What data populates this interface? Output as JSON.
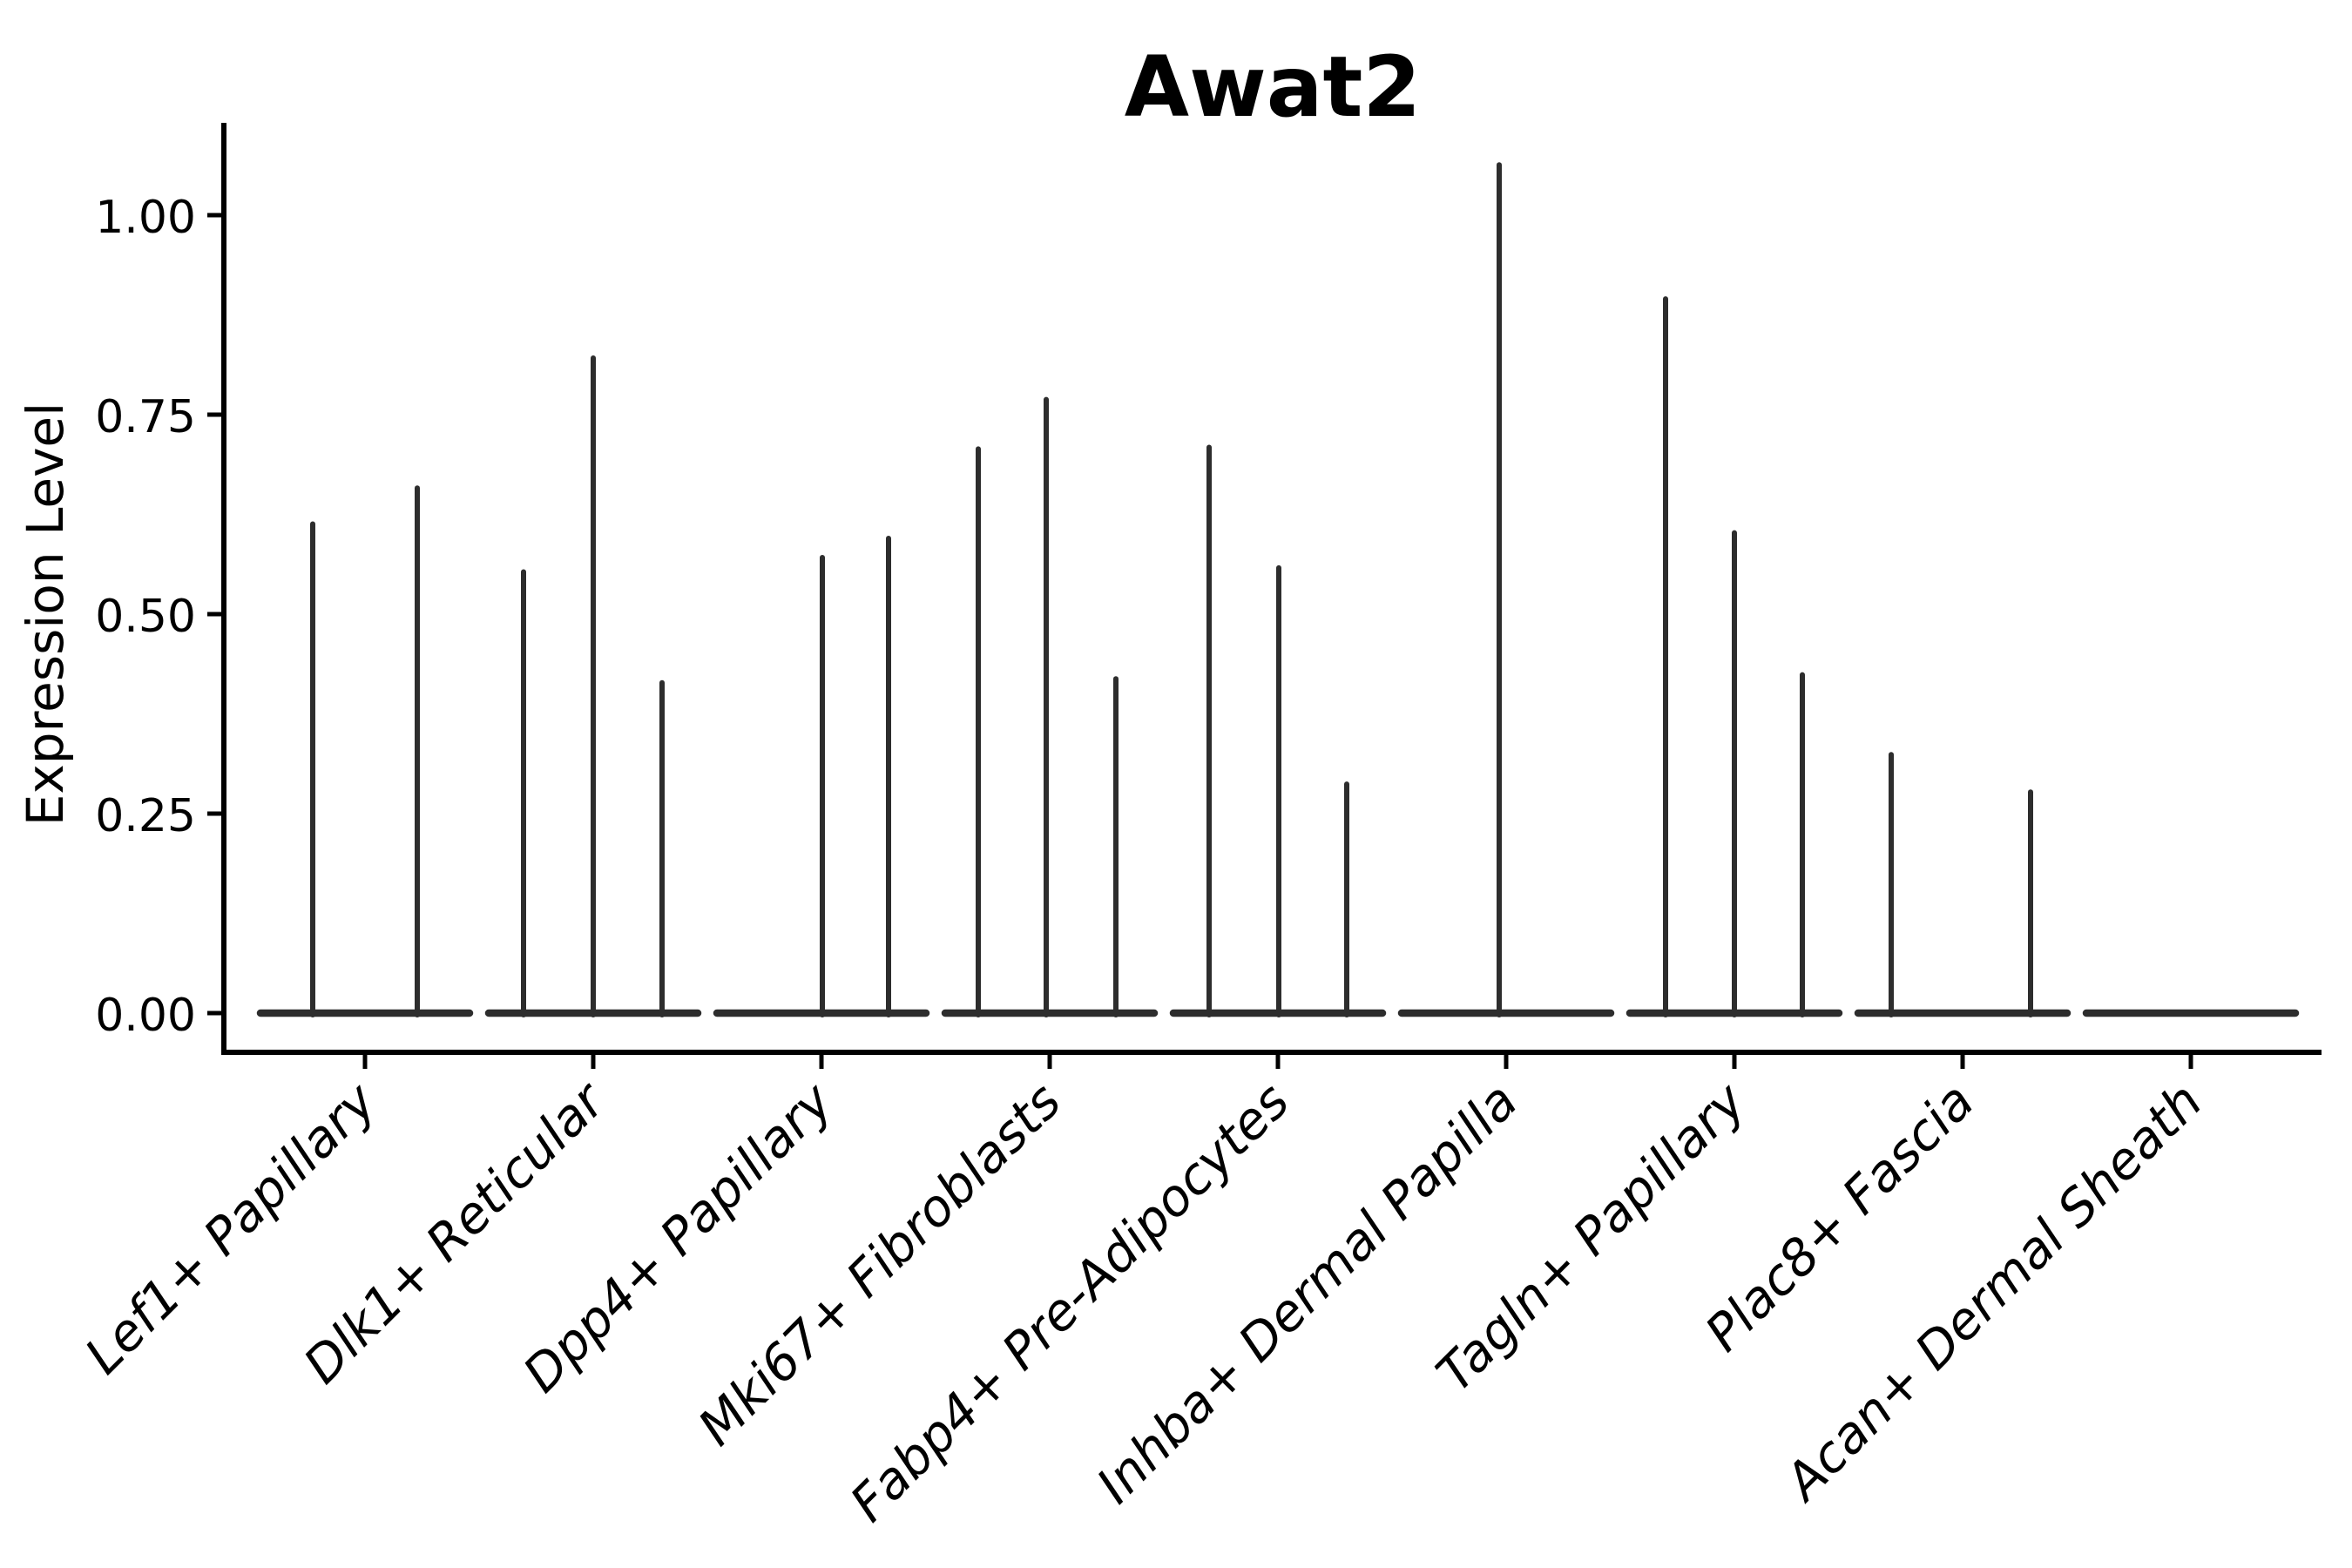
{
  "chart_data": {
    "type": "violin",
    "title": "Awat2",
    "ylabel": "Expression Level",
    "xlabel": "",
    "ytick_labels": [
      "1.00",
      "0.75",
      "0.50",
      "0.25",
      "0.00"
    ],
    "ytick_values": [
      1.0,
      0.75,
      0.5,
      0.25,
      0.0
    ],
    "ylim": [
      -0.05,
      1.115
    ],
    "grid": false,
    "legend": "none",
    "x_label_rotation_deg": 45,
    "categories": [
      "Lef1+ Papillary",
      "Dlk1+ Reticular",
      "Dpp4+ Papillary",
      "Mki67+ Fibroblasts",
      "Fabp4+ Pre-Adipocytes",
      "Inhba+ Dermal Papilla",
      "Tagln+ Papillary",
      "Plac8+ Fascia",
      "Acan+ Dermal Sheath"
    ],
    "violins": [
      {
        "category": "Lef1+ Papillary",
        "spikes": [
          {
            "offset": -60,
            "max": 0.613
          },
          {
            "offset": 60,
            "max": 0.658
          }
        ]
      },
      {
        "category": "Dlk1+ Reticular",
        "spikes": [
          {
            "offset": -80,
            "max": 0.553
          },
          {
            "offset": 0,
            "max": 0.821
          },
          {
            "offset": 79,
            "max": 0.414
          }
        ]
      },
      {
        "category": "Dpp4+ Papillary",
        "spikes": [
          {
            "offset": 1,
            "max": 0.571
          },
          {
            "offset": 77,
            "max": 0.595
          }
        ]
      },
      {
        "category": "Mki67+ Fibroblasts",
        "spikes": [
          {
            "offset": -82,
            "max": 0.707
          },
          {
            "offset": -4,
            "max": 0.769
          },
          {
            "offset": 76,
            "max": 0.419
          }
        ]
      },
      {
        "category": "Fabp4+ Pre-Adipocytes",
        "spikes": [
          {
            "offset": -79,
            "max": 0.709
          },
          {
            "offset": 1,
            "max": 0.558
          },
          {
            "offset": 79,
            "max": 0.287
          }
        ]
      },
      {
        "category": "Inhba+ Dermal Papilla",
        "spikes": [
          {
            "offset": -8,
            "max": 1.063
          }
        ]
      },
      {
        "category": "Tagln+ Papillary",
        "spikes": [
          {
            "offset": -79,
            "max": 0.895
          },
          {
            "offset": 0,
            "max": 0.602
          },
          {
            "offset": 78,
            "max": 0.424
          }
        ]
      },
      {
        "category": "Plac8+ Fascia",
        "spikes": [
          {
            "offset": -82,
            "max": 0.324
          },
          {
            "offset": 78,
            "max": 0.277
          }
        ]
      },
      {
        "category": "Acan+ Dermal Sheath",
        "spikes": []
      }
    ],
    "colors": {
      "violin": "#2d2d2d",
      "axis": "#000000",
      "text": "#000000",
      "background": "#ffffff"
    }
  }
}
